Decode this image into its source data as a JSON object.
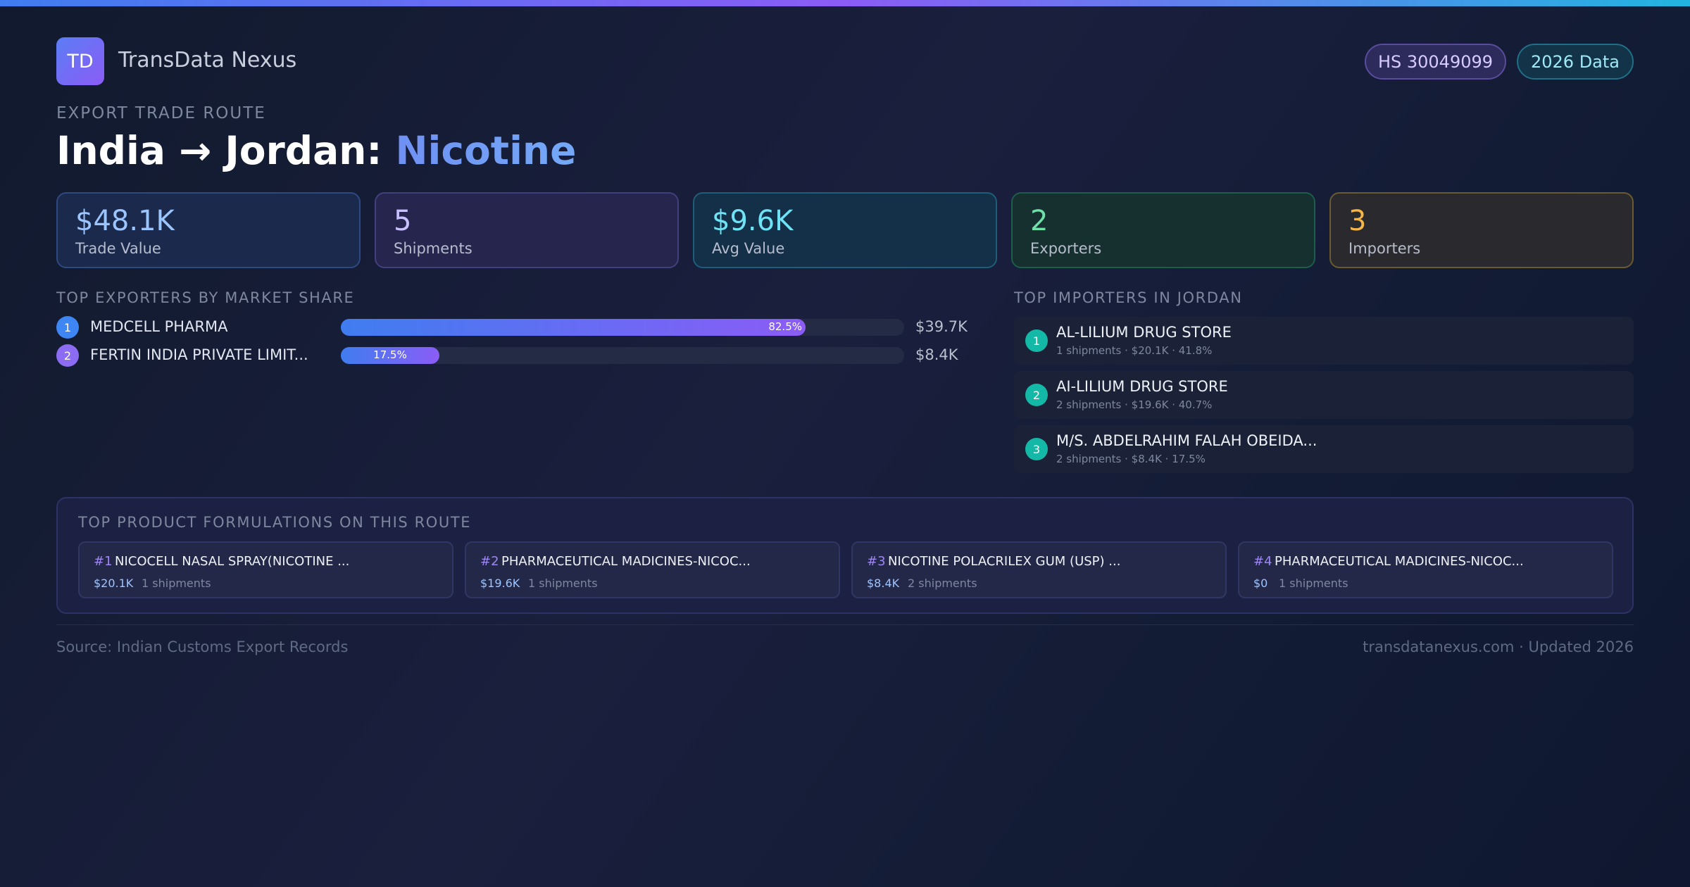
{
  "brand": {
    "logo_text": "TD",
    "name": "TransData Nexus"
  },
  "badges": {
    "hs_code": "HS 30049099",
    "year": "2026 Data"
  },
  "route": {
    "eyebrow": "EXPORT TRADE ROUTE",
    "title_prefix": "India → Jordan: ",
    "product": "Nicotine"
  },
  "stats": [
    {
      "value": "$48.1K",
      "label": "Trade Value",
      "color": "#9cc4ff"
    },
    {
      "value": "5",
      "label": "Shipments",
      "color": "#c8c0ff"
    },
    {
      "value": "$9.6K",
      "label": "Avg Value",
      "color": "#6fe3f5"
    },
    {
      "value": "2",
      "label": "Exporters",
      "color": "#6ee0a8"
    },
    {
      "value": "3",
      "label": "Importers",
      "color": "#f5b547"
    }
  ],
  "exporters": {
    "title": "TOP EXPORTERS BY MARKET SHARE",
    "items": [
      {
        "rank": "1",
        "name": "MEDCELL PHARMA",
        "share": 82.5,
        "share_label": "82.5%",
        "value": "$39.7K"
      },
      {
        "rank": "2",
        "name": "FERTIN INDIA PRIVATE LIMIT...",
        "share": 17.5,
        "share_label": "17.5%",
        "value": "$8.4K"
      }
    ]
  },
  "importers": {
    "title": "TOP IMPORTERS IN JORDAN",
    "items": [
      {
        "rank": "1",
        "name": "AL-LILIUM DRUG STORE",
        "meta": "1 shipments · $20.1K · 41.8%"
      },
      {
        "rank": "2",
        "name": "AI-LILIUM DRUG STORE",
        "meta": "2 shipments · $19.6K · 40.7%"
      },
      {
        "rank": "3",
        "name": "M/S. ABDELRAHIM FALAH OBEIDA...",
        "meta": "2 shipments · $8.4K · 17.5%"
      }
    ]
  },
  "products": {
    "title": "TOP PRODUCT FORMULATIONS ON THIS ROUTE",
    "items": [
      {
        "rank": "#1",
        "name": "NICOCELL NASAL SPRAY(NICOTINE ...",
        "value": "$20.1K",
        "shipments": "1 shipments"
      },
      {
        "rank": "#2",
        "name": "PHARMACEUTICAL MADICINES-NICOC...",
        "value": "$19.6K",
        "shipments": "1 shipments"
      },
      {
        "rank": "#3",
        "name": "NICOTINE POLACRILEX GUM (USP) ...",
        "value": "$8.4K",
        "shipments": "2 shipments"
      },
      {
        "rank": "#4",
        "name": "PHARMACEUTICAL MADICINES-NICOC...",
        "value": "$0",
        "shipments": "1 shipments"
      }
    ]
  },
  "footer": {
    "source": "Source: Indian Customs Export Records",
    "site": "transdatanexus.com · Updated 2026"
  }
}
